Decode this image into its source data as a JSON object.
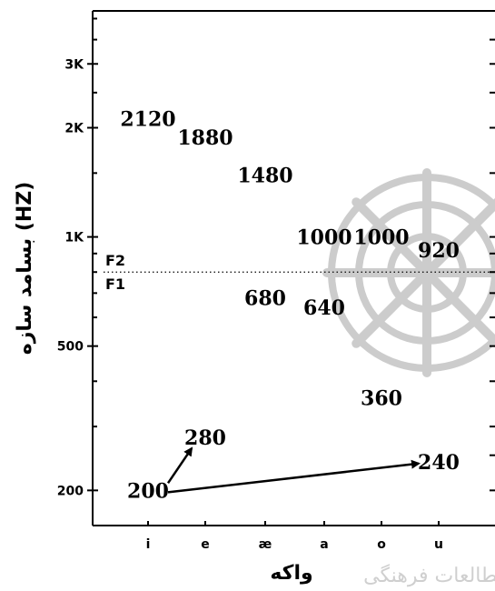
{
  "chart_data": {
    "type": "scatter",
    "y_scale": "log",
    "ylim": [
      160,
      4200
    ],
    "ylabel": "بسامد سازه (HZ)",
    "xlabel": "واکه",
    "categories": [
      "i",
      "e",
      "æ",
      "a",
      "o",
      "u"
    ],
    "category_tick_labels": [
      "i",
      "e",
      "æ",
      "a",
      "o",
      "u"
    ],
    "y_tick_labels": [
      "3K",
      "2K",
      "1K",
      "500",
      "200"
    ],
    "y_ticks": [
      3000,
      2000,
      1000,
      500,
      200
    ],
    "divider": {
      "value": 800,
      "upper_label": "F2",
      "lower_label": "F1"
    },
    "series": [
      {
        "name": "F2",
        "points": [
          {
            "category": "i",
            "value": 2120,
            "label": "2120"
          },
          {
            "category": "e",
            "value": 1880,
            "label": "1880"
          },
          {
            "category": "æ",
            "value": 1480,
            "label": "1480"
          },
          {
            "category": "a",
            "value": 1000,
            "label": "1000"
          },
          {
            "category": "o",
            "value": 1000,
            "label": "1000"
          },
          {
            "category": "u",
            "value": 920,
            "label": "920"
          }
        ]
      },
      {
        "name": "F1",
        "points": [
          {
            "category": "æ",
            "value": 680,
            "label": "680"
          },
          {
            "category": "a",
            "value": 640,
            "label": "640"
          },
          {
            "category": "o",
            "value": 360,
            "label": "360"
          }
        ]
      }
    ],
    "annotations": [
      {
        "label": "280",
        "value": 280,
        "category": "e"
      },
      {
        "label": "240",
        "value": 240,
        "category": "u"
      },
      {
        "label": "200",
        "value": 200,
        "category": "i"
      }
    ],
    "arrows": [
      {
        "from": "200",
        "to": "280"
      },
      {
        "from": "200",
        "to": "240"
      }
    ]
  },
  "watermark": {
    "text": "مطالعات فرهنگی"
  },
  "colors": {
    "ink": "#000000",
    "watermark": "#cccccc"
  }
}
